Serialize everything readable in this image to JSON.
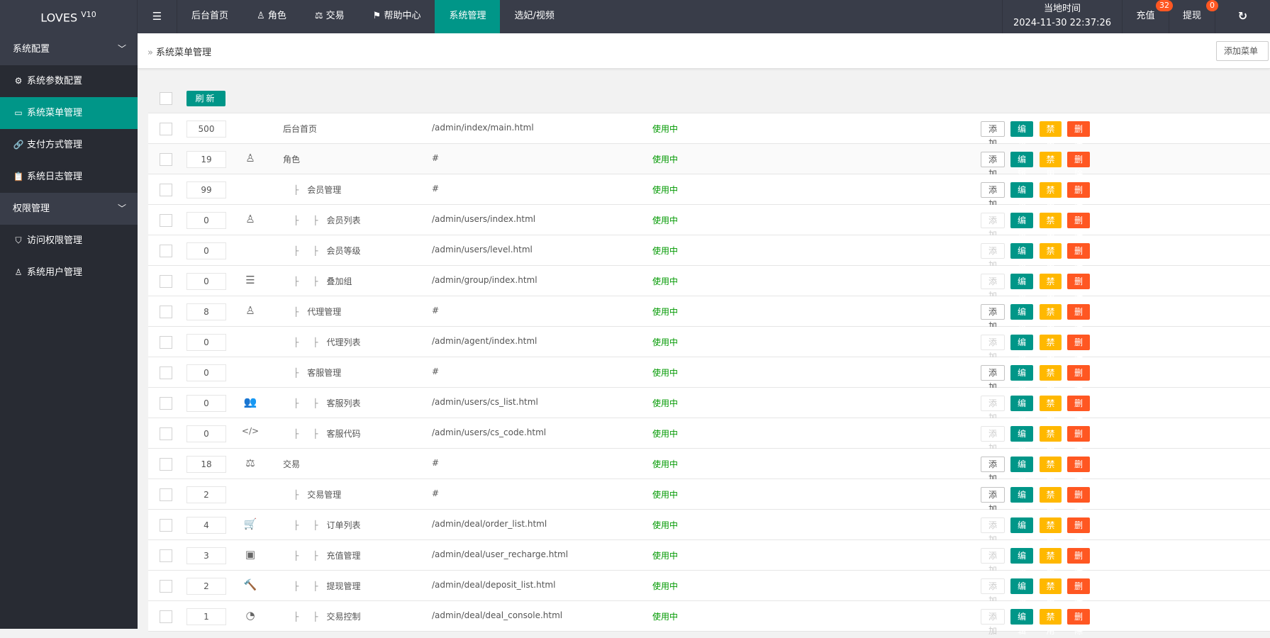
{
  "header": {
    "logo": "LOVES",
    "logo_version": "V10",
    "nav": [
      {
        "label": "后台首页",
        "icon": ""
      },
      {
        "label": "角色",
        "icon": "user-icon"
      },
      {
        "label": "交易",
        "icon": "scale-icon"
      },
      {
        "label": "帮助中心",
        "icon": "flag-icon"
      },
      {
        "label": "系统管理",
        "icon": "",
        "active": true
      },
      {
        "label": "选妃/视频",
        "icon": ""
      }
    ],
    "time_label": "当地时间",
    "time_value": "2024-11-30 22:37:26",
    "recharge_label": "充值",
    "recharge_badge": "32",
    "withdraw_label": "提现",
    "withdraw_badge": "0"
  },
  "sidebar": {
    "groups": [
      {
        "label": "系统配置",
        "items": [
          {
            "label": "系统参数配置",
            "icon": "gear-icon"
          },
          {
            "label": "系统菜单管理",
            "icon": "window-icon",
            "active": true
          },
          {
            "label": "支付方式管理",
            "icon": "link-icon"
          },
          {
            "label": "系统日志管理",
            "icon": "clipboard-icon"
          }
        ]
      },
      {
        "label": "权限管理",
        "items": [
          {
            "label": "访问权限管理",
            "icon": "shield-icon"
          },
          {
            "label": "系统用户管理",
            "icon": "user-icon"
          }
        ]
      }
    ]
  },
  "breadcrumb": {
    "label": "系统菜单管理",
    "add_button": "添加菜单"
  },
  "table": {
    "refresh_label": "刷新",
    "buttons": {
      "add": "添加",
      "edit": "编辑",
      "disable": "禁用",
      "delete": "删除"
    },
    "rows": [
      {
        "sort": "500",
        "icon": "",
        "level": 0,
        "name": "后台首页",
        "url": "/admin/index/main.html",
        "status": "使用中",
        "add_enabled": true
      },
      {
        "sort": "19",
        "icon": "user-icon",
        "level": 0,
        "name": "角色",
        "url": "#",
        "status": "使用中",
        "add_enabled": true
      },
      {
        "sort": "99",
        "icon": "",
        "level": 1,
        "name": "会员管理",
        "url": "#",
        "status": "使用中",
        "add_enabled": true
      },
      {
        "sort": "0",
        "icon": "user-icon",
        "level": 2,
        "name": "会员列表",
        "url": "/admin/users/index.html",
        "status": "使用中",
        "add_enabled": false
      },
      {
        "sort": "0",
        "icon": "",
        "level": 2,
        "name": "会员等级",
        "url": "/admin/users/level.html",
        "status": "使用中",
        "add_enabled": false
      },
      {
        "sort": "0",
        "icon": "indent-icon",
        "level": 2,
        "name": "叠加组",
        "url": "/admin/group/index.html",
        "status": "使用中",
        "add_enabled": false
      },
      {
        "sort": "8",
        "icon": "users-outline-icon",
        "level": 1,
        "name": "代理管理",
        "url": "#",
        "status": "使用中",
        "add_enabled": true
      },
      {
        "sort": "0",
        "icon": "",
        "level": 2,
        "name": "代理列表",
        "url": "/admin/agent/index.html",
        "status": "使用中",
        "add_enabled": false
      },
      {
        "sort": "0",
        "icon": "",
        "level": 1,
        "name": "客服管理",
        "url": "#",
        "status": "使用中",
        "add_enabled": true
      },
      {
        "sort": "0",
        "icon": "users-icon",
        "level": 2,
        "name": "客服列表",
        "url": "/admin/users/cs_list.html",
        "status": "使用中",
        "add_enabled": false
      },
      {
        "sort": "0",
        "icon": "code-icon",
        "level": 2,
        "name": "客服代码",
        "url": "/admin/users/cs_code.html",
        "status": "使用中",
        "add_enabled": false
      },
      {
        "sort": "18",
        "icon": "scale-icon",
        "level": 0,
        "name": "交易",
        "url": "#",
        "status": "使用中",
        "add_enabled": true
      },
      {
        "sort": "2",
        "icon": "",
        "level": 1,
        "name": "交易管理",
        "url": "#",
        "status": "使用中",
        "add_enabled": true
      },
      {
        "sort": "4",
        "icon": "cart-icon",
        "level": 2,
        "name": "订单列表",
        "url": "/admin/deal/order_list.html",
        "status": "使用中",
        "add_enabled": false
      },
      {
        "sort": "3",
        "icon": "presentation-icon",
        "level": 2,
        "name": "充值管理",
        "url": "/admin/deal/user_recharge.html",
        "status": "使用中",
        "add_enabled": false
      },
      {
        "sort": "2",
        "icon": "gavel-icon",
        "level": 2,
        "name": "提现管理",
        "url": "/admin/deal/deposit_list.html",
        "status": "使用中",
        "add_enabled": false
      },
      {
        "sort": "1",
        "icon": "gauge-icon",
        "level": 2,
        "name": "交易控制",
        "url": "/admin/deal/deal_console.html",
        "status": "使用中",
        "add_enabled": false
      }
    ]
  },
  "colors": {
    "header": "#393D49",
    "accent": "#009688",
    "warn": "#FFB800",
    "danger": "#FF5722",
    "status": "#009900"
  }
}
